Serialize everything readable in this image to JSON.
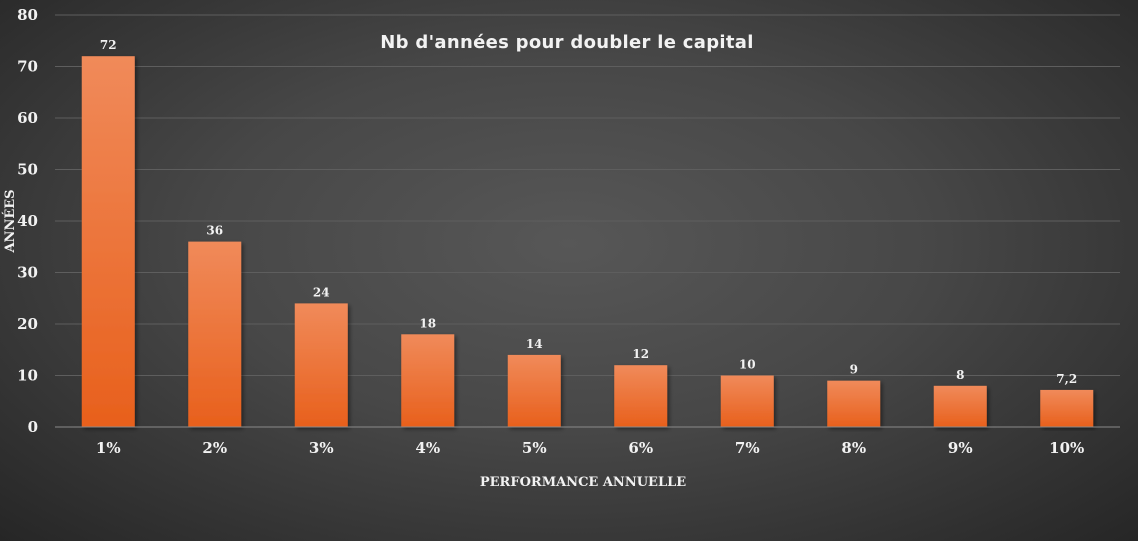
{
  "chart_data": {
    "type": "bar",
    "title": "Nb d'années pour doubler le capital",
    "xlabel": "PERFORMANCE ANNUELLE",
    "ylabel": "ANNÉES",
    "categories": [
      "1%",
      "2%",
      "3%",
      "4%",
      "5%",
      "6%",
      "7%",
      "8%",
      "9%",
      "10%"
    ],
    "values": [
      72,
      36,
      24,
      18,
      14,
      12,
      10,
      9,
      8,
      7.2
    ],
    "data_labels": [
      "72",
      "36",
      "24",
      "18",
      "14",
      "12",
      "10",
      "9",
      "8",
      "7,2"
    ],
    "ylim": [
      0,
      80
    ],
    "yticks": [
      0,
      10,
      20,
      30,
      40,
      50,
      60,
      70,
      80
    ],
    "grid": true,
    "legend": "none",
    "colors": {
      "bar_top": "#f08a5a",
      "bar_bottom": "#e8601c",
      "text": "#f2f2f2",
      "background": "#474747"
    }
  }
}
